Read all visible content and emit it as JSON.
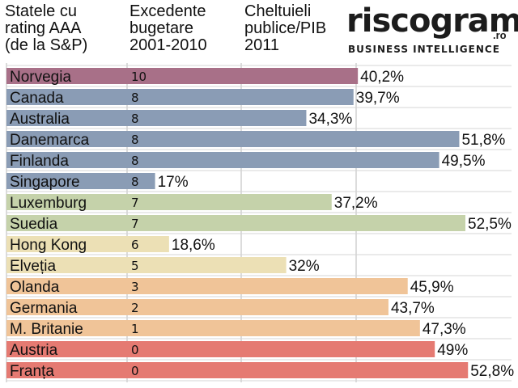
{
  "header": {
    "col1": "Statele cu\nrating AAA\n(de la S&P)",
    "col2": "Excedente\nbugetare\n2001-2010",
    "col3": "Cheltuieli\npublice/PIB\n2011"
  },
  "logo": {
    "word": "riscograma",
    "tld": ".ro",
    "tagline": "BUSINESS INTELLIGENCE"
  },
  "chart_data": {
    "type": "bar",
    "categories": [
      "Norvegia",
      "Canada",
      "Australia",
      "Danemarca",
      "Finlanda",
      "Singapore",
      "Luxemburg",
      "Suedia",
      "Hong Kong",
      "Elveția",
      "Olanda",
      "Germania",
      "M. Britanie",
      "Austria",
      "Franța"
    ],
    "surplus_years": [
      "10",
      "8",
      "8",
      "8",
      "8",
      "8",
      "7",
      "7",
      "6",
      "5",
      "3",
      "2",
      "1",
      "0",
      "0"
    ],
    "values": [
      40.2,
      39.7,
      34.3,
      51.8,
      49.5,
      17,
      37.2,
      52.5,
      18.6,
      32,
      45.9,
      43.7,
      47.3,
      49,
      52.8
    ],
    "value_labels": [
      "40,2%",
      "39,7%",
      "34,3%",
      "51,8%",
      "49,5%",
      "17%",
      "37,2%",
      "52,5%",
      "18,6%",
      "32%",
      "45,9%",
      "43,7%",
      "47,3%",
      "49%",
      "52,8%"
    ],
    "colors": [
      "#a87088",
      "#8a9cb5",
      "#8a9cb5",
      "#8a9cb5",
      "#8a9cb5",
      "#8a9cb5",
      "#c5d2aa",
      "#c5d2aa",
      "#ece0b5",
      "#ece0b5",
      "#f0c498",
      "#f0c498",
      "#f0c498",
      "#e57a72",
      "#e57a72"
    ],
    "grid": true
  }
}
